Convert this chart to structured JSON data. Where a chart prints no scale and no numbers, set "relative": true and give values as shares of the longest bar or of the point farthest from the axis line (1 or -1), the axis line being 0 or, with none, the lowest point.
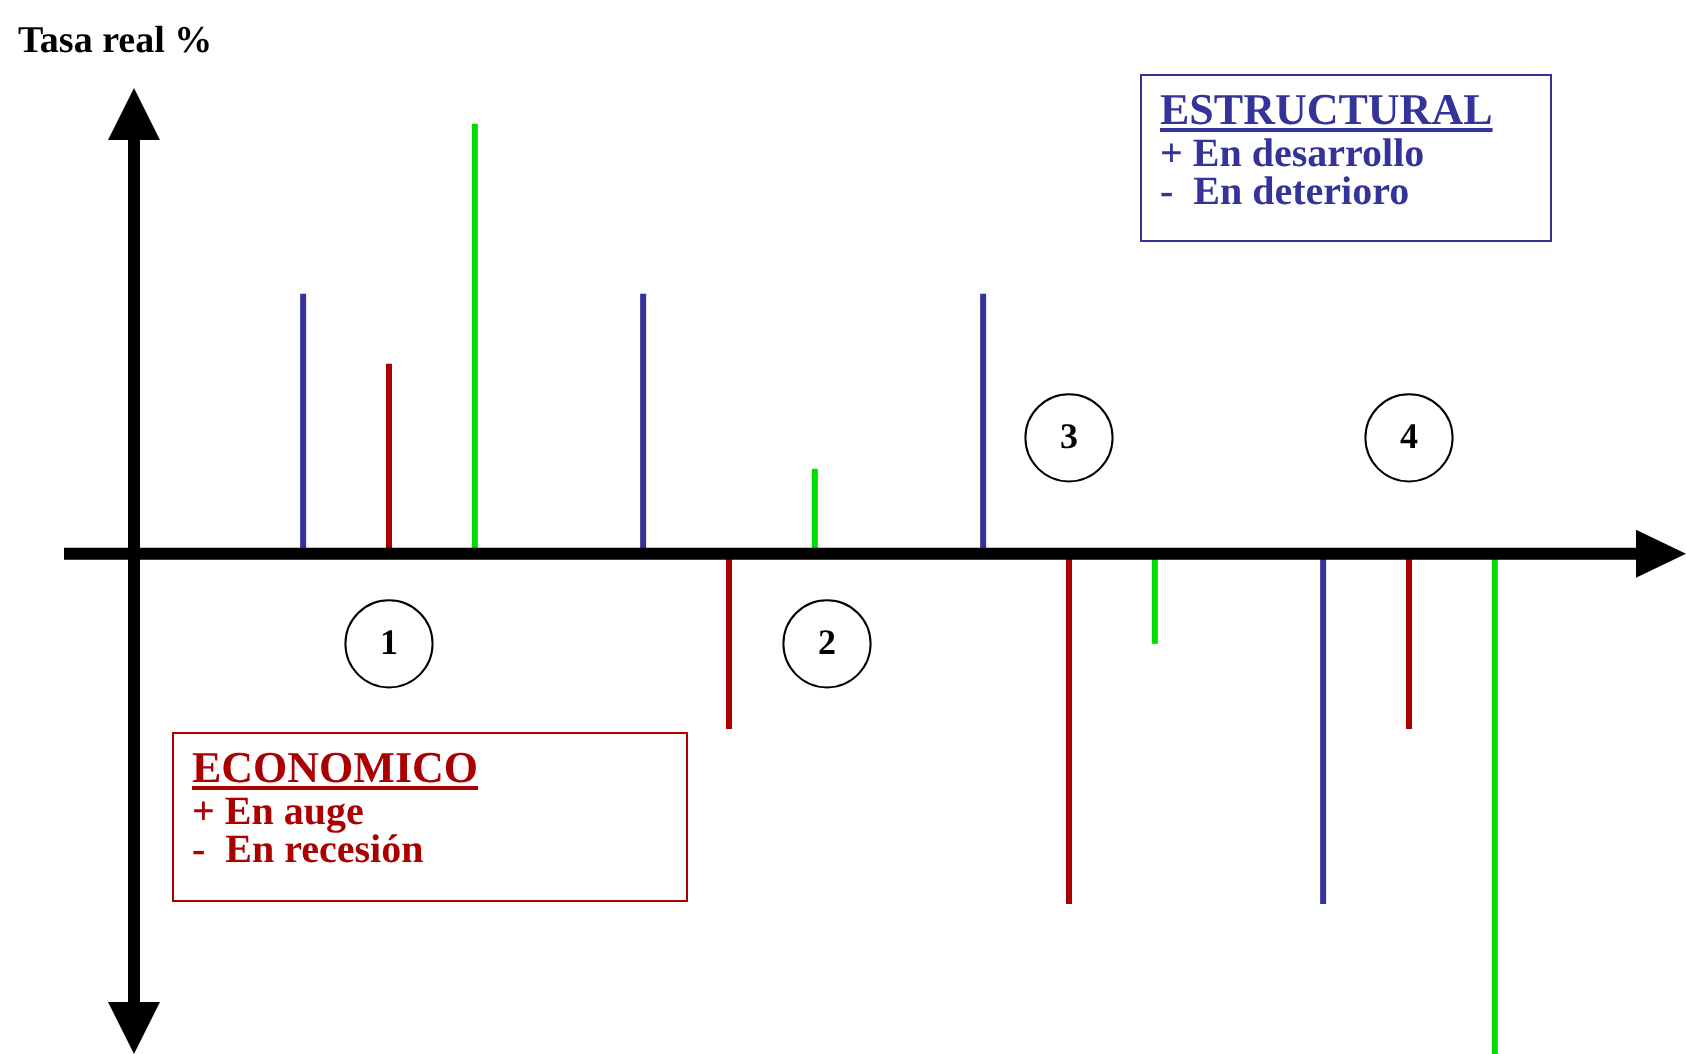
{
  "chart_data": {
    "type": "bar",
    "relative": true,
    "ylabel": "Tasa real %",
    "categories": [
      "1",
      "2",
      "3",
      "4"
    ],
    "series": [
      {
        "color": "#333399",
        "values": [
          0.52,
          0.52,
          0.52,
          -0.7
        ]
      },
      {
        "color": "#aa0000",
        "values": [
          0.38,
          -0.35,
          -0.7,
          -0.35
        ]
      },
      {
        "color": "#00dd00",
        "values": [
          0.86,
          0.17,
          -0.18,
          -1
        ]
      }
    ],
    "annotations": [
      "ESTRUCTURAL\n+ En desarrollo\n-  En deterioro",
      "ECONOMICO\n+ En auge\n-  En recesión"
    ],
    "legend": false
  }
}
